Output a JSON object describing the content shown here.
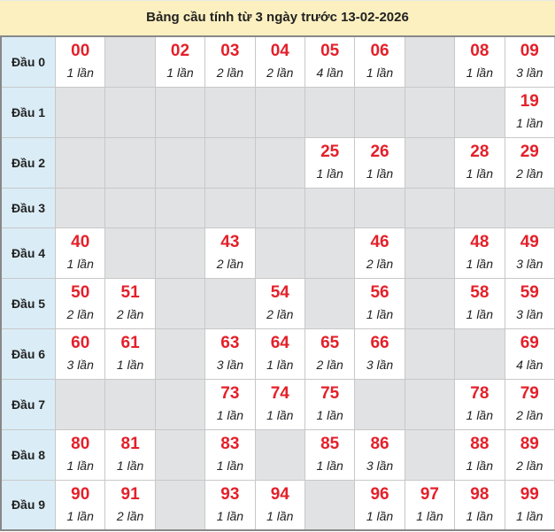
{
  "title": "Bảng cầu tính từ 3 ngày trước 13-02-2026",
  "colors": {
    "header_bg": "#fdf0c0",
    "label_bg": "#daedf7",
    "empty_bg": "#e1e2e4",
    "number": "#e4202a"
  },
  "rows": [
    {
      "label": "Đầu 0",
      "cells": [
        {
          "n": "00",
          "c": "1 lần"
        },
        null,
        {
          "n": "02",
          "c": "1 lần"
        },
        {
          "n": "03",
          "c": "2 lần"
        },
        {
          "n": "04",
          "c": "2 lần"
        },
        {
          "n": "05",
          "c": "4 lần"
        },
        {
          "n": "06",
          "c": "1 lần"
        },
        null,
        {
          "n": "08",
          "c": "1 lần"
        },
        {
          "n": "09",
          "c": "3 lần"
        }
      ]
    },
    {
      "label": "Đầu 1",
      "cells": [
        null,
        null,
        null,
        null,
        null,
        null,
        null,
        null,
        null,
        {
          "n": "19",
          "c": "1 lần"
        }
      ]
    },
    {
      "label": "Đầu 2",
      "cells": [
        null,
        null,
        null,
        null,
        null,
        {
          "n": "25",
          "c": "1 lần"
        },
        {
          "n": "26",
          "c": "1 lần"
        },
        null,
        {
          "n": "28",
          "c": "1 lần"
        },
        {
          "n": "29",
          "c": "2 lần"
        }
      ]
    },
    {
      "label": "Đầu 3",
      "cells": [
        null,
        null,
        null,
        null,
        null,
        null,
        null,
        null,
        null,
        null
      ]
    },
    {
      "label": "Đầu 4",
      "cells": [
        {
          "n": "40",
          "c": "1 lần"
        },
        null,
        null,
        {
          "n": "43",
          "c": "2 lần"
        },
        null,
        null,
        {
          "n": "46",
          "c": "2 lần"
        },
        null,
        {
          "n": "48",
          "c": "1 lần"
        },
        {
          "n": "49",
          "c": "3 lần"
        }
      ]
    },
    {
      "label": "Đầu 5",
      "cells": [
        {
          "n": "50",
          "c": "2 lần"
        },
        {
          "n": "51",
          "c": "2 lần"
        },
        null,
        null,
        {
          "n": "54",
          "c": "2 lần"
        },
        null,
        {
          "n": "56",
          "c": "1 lần"
        },
        null,
        {
          "n": "58",
          "c": "1 lần"
        },
        {
          "n": "59",
          "c": "3 lần"
        }
      ]
    },
    {
      "label": "Đầu 6",
      "cells": [
        {
          "n": "60",
          "c": "3 lần"
        },
        {
          "n": "61",
          "c": "1 lần"
        },
        null,
        {
          "n": "63",
          "c": "3 lần"
        },
        {
          "n": "64",
          "c": "1 lần"
        },
        {
          "n": "65",
          "c": "2 lần"
        },
        {
          "n": "66",
          "c": "3 lần"
        },
        null,
        null,
        {
          "n": "69",
          "c": "4 lần"
        }
      ]
    },
    {
      "label": "Đầu 7",
      "cells": [
        null,
        null,
        null,
        {
          "n": "73",
          "c": "1 lần"
        },
        {
          "n": "74",
          "c": "1 lần"
        },
        {
          "n": "75",
          "c": "1 lần"
        },
        null,
        null,
        {
          "n": "78",
          "c": "1 lần"
        },
        {
          "n": "79",
          "c": "2 lần"
        }
      ]
    },
    {
      "label": "Đầu 8",
      "cells": [
        {
          "n": "80",
          "c": "1 lần"
        },
        {
          "n": "81",
          "c": "1 lần"
        },
        null,
        {
          "n": "83",
          "c": "1 lần"
        },
        null,
        {
          "n": "85",
          "c": "1 lần"
        },
        {
          "n": "86",
          "c": "3 lần"
        },
        null,
        {
          "n": "88",
          "c": "1 lần"
        },
        {
          "n": "89",
          "c": "2 lần"
        }
      ]
    },
    {
      "label": "Đầu 9",
      "cells": [
        {
          "n": "90",
          "c": "1 lần"
        },
        {
          "n": "91",
          "c": "2 lần"
        },
        null,
        {
          "n": "93",
          "c": "1 lần"
        },
        {
          "n": "94",
          "c": "1 lần"
        },
        null,
        {
          "n": "96",
          "c": "1 lần"
        },
        {
          "n": "97",
          "c": "1 lần"
        },
        {
          "n": "98",
          "c": "1 lần"
        },
        {
          "n": "99",
          "c": "1 lần"
        }
      ]
    }
  ]
}
